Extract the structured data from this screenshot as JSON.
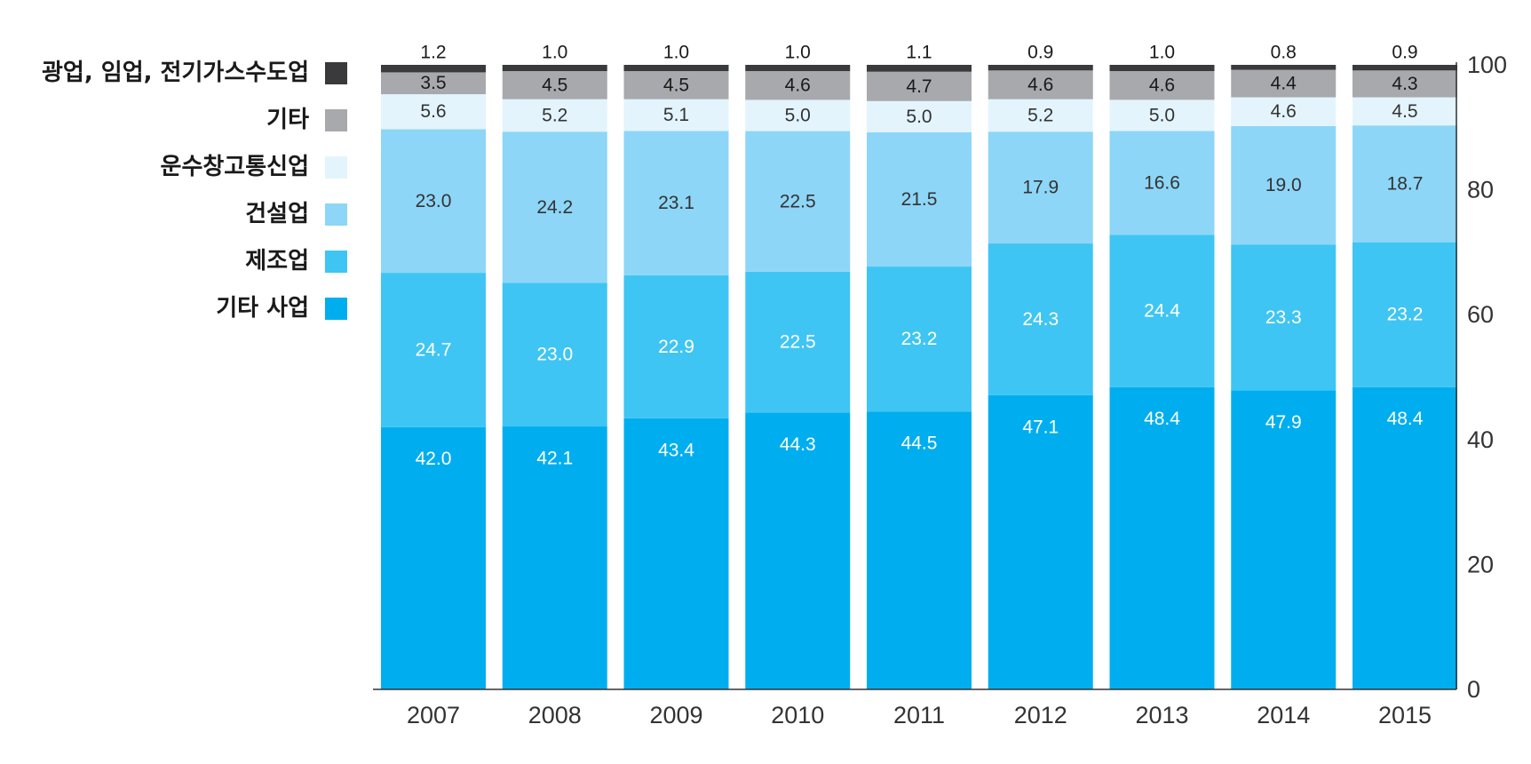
{
  "chart_data": {
    "type": "bar",
    "stacked": true,
    "title": "",
    "xlabel": "",
    "ylabel": "",
    "ylim": [
      0,
      100
    ],
    "y_ticks": [
      0,
      20,
      40,
      60,
      80,
      100
    ],
    "y_axis_side": "right",
    "legend_position": "left",
    "categories": [
      "2007",
      "2008",
      "2009",
      "2010",
      "2011",
      "2012",
      "2013",
      "2014",
      "2015"
    ],
    "series": [
      {
        "name": "기타 사업",
        "color": "#00aeef",
        "label_color": "#ffffff",
        "values": [
          42.0,
          42.1,
          43.4,
          44.3,
          44.5,
          47.1,
          48.4,
          47.9,
          48.4
        ],
        "labels": [
          "42.0",
          "42.1",
          "43.4",
          "44.3",
          "44.5",
          "47.1",
          "48.4",
          "47.9",
          "48.4"
        ]
      },
      {
        "name": "제조업",
        "color": "#3fc5f3",
        "label_color": "#ffffff",
        "values": [
          24.7,
          23.0,
          22.9,
          22.5,
          23.2,
          24.3,
          24.4,
          23.3,
          23.2
        ],
        "labels": [
          "24.7",
          "23.0",
          "22.9",
          "22.5",
          "23.2",
          "24.3",
          "24.4",
          "23.3",
          "23.2"
        ]
      },
      {
        "name": "건설업",
        "color": "#8dd6f7",
        "label_color": "#333333",
        "values": [
          23.0,
          24.2,
          23.1,
          22.5,
          21.5,
          17.9,
          16.6,
          19.0,
          18.7
        ],
        "labels": [
          "23.0",
          "24.2",
          "23.1",
          "22.5",
          "21.5",
          "17.9",
          "16.6",
          "19.0",
          "18.7"
        ]
      },
      {
        "name": "운수창고통신업",
        "color": "#e3f4fd",
        "label_color": "#333333",
        "values": [
          5.6,
          5.2,
          5.1,
          5.0,
          5.0,
          5.2,
          5.0,
          4.6,
          4.5
        ],
        "labels": [
          "5.6",
          "5.2",
          "5.1",
          "5.0",
          "5.0",
          "5.2",
          "5.0",
          "4.6",
          "4.5"
        ]
      },
      {
        "name": "기타",
        "color": "#a7a9ac",
        "label_color": "#1a1a1a",
        "values": [
          3.5,
          4.5,
          4.5,
          4.6,
          4.7,
          4.6,
          4.6,
          4.4,
          4.3
        ],
        "labels": [
          "3.5",
          "4.5",
          "4.5",
          "4.6",
          "4.7",
          "4.6",
          "4.6",
          "4.4",
          "4.3"
        ]
      },
      {
        "name": "광업, 임업, 전기가스수도업",
        "color": "#3a3a3c",
        "label_color": "#1a1a1a",
        "values": [
          1.2,
          1.0,
          1.0,
          1.0,
          1.1,
          0.9,
          1.0,
          0.8,
          0.9
        ],
        "labels": [
          "1.2",
          "1.0",
          "1.0",
          "1.0",
          "1.1",
          "0.9",
          "1.0",
          "0.8",
          "0.9"
        ]
      }
    ]
  }
}
